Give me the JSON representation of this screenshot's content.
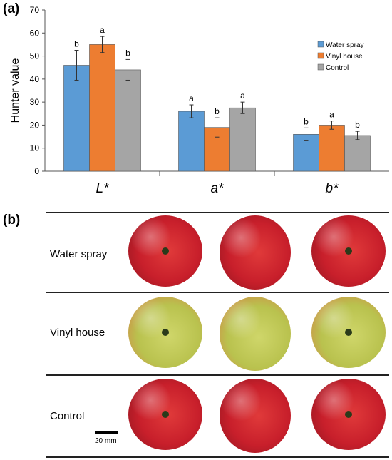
{
  "panels": {
    "a": "(a)",
    "b": "(b)"
  },
  "chart_data": {
    "type": "bar",
    "categories": [
      "L*",
      "a*",
      "b*"
    ],
    "ylabel": "Hunter value",
    "ylim": [
      0,
      70
    ],
    "yticks": [
      0,
      10,
      20,
      30,
      40,
      50,
      60,
      70
    ],
    "grid": false,
    "legend_position": "top-right",
    "series": [
      {
        "name": "Water spray",
        "color": "#5b9bd5",
        "values": [
          46,
          26,
          16
        ],
        "errors": [
          6.5,
          2.8,
          2.8
        ],
        "letters": [
          "b",
          "a",
          "b"
        ]
      },
      {
        "name": "Vinyl house",
        "color": "#ed7d31",
        "values": [
          55,
          19,
          20
        ],
        "errors": [
          3.5,
          4.2,
          1.8
        ],
        "letters": [
          "a",
          "b",
          "a"
        ]
      },
      {
        "name": "Control",
        "color": "#a5a5a5",
        "values": [
          44,
          27.5,
          15.5
        ],
        "errors": [
          4.5,
          2.5,
          1.8
        ],
        "letters": [
          "b",
          "a",
          "b"
        ]
      }
    ]
  },
  "photo_table": {
    "rows": [
      {
        "label": "Water spray",
        "apples": [
          "red",
          "red",
          "red"
        ]
      },
      {
        "label": "Vinyl house",
        "apples": [
          "yellow",
          "yellow",
          "yellow"
        ]
      },
      {
        "label": "Control",
        "apples": [
          "red",
          "red",
          "red"
        ]
      }
    ],
    "scale_bar_label": "20 mm"
  }
}
